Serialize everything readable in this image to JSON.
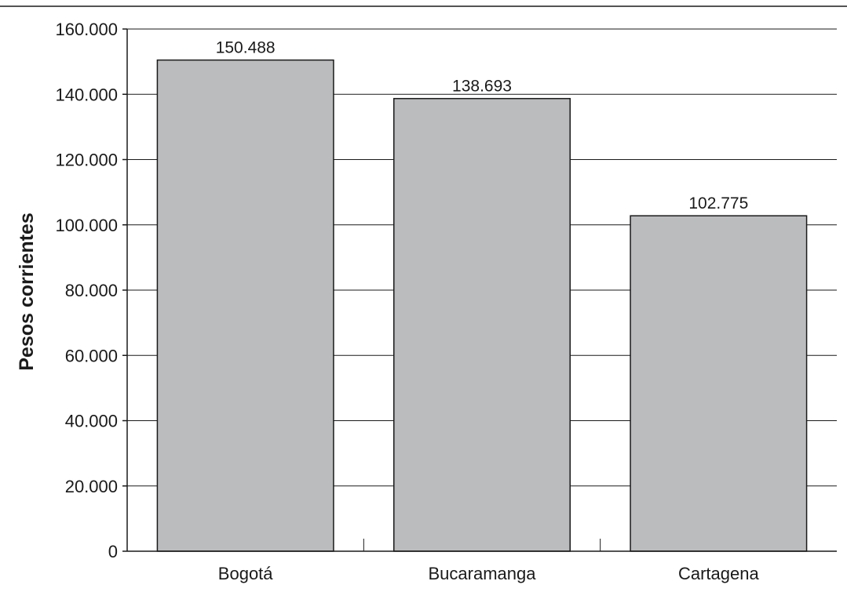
{
  "chart_data": {
    "type": "bar",
    "title": "",
    "xlabel": "",
    "ylabel": "Pesos corrientes",
    "categories": [
      "Bogotá",
      "Bucaramanga",
      "Cartagena"
    ],
    "values": [
      150488,
      138693,
      102775
    ],
    "value_labels": [
      "150.488",
      "138.693",
      "102.775"
    ],
    "ylim": [
      0,
      160000
    ],
    "y_ticks": [
      0,
      20000,
      40000,
      60000,
      80000,
      100000,
      120000,
      140000,
      160000
    ],
    "y_tick_labels": [
      "0",
      "20.000",
      "40.000",
      "60.000",
      "80.000",
      "100.000",
      "120.000",
      "140.000",
      "160.000"
    ],
    "grid": true,
    "legend": "none",
    "colors": {
      "bar_fill": "#bbbcbe",
      "bar_stroke": "#1a1a1a",
      "grid": "#1a1a1a"
    }
  }
}
